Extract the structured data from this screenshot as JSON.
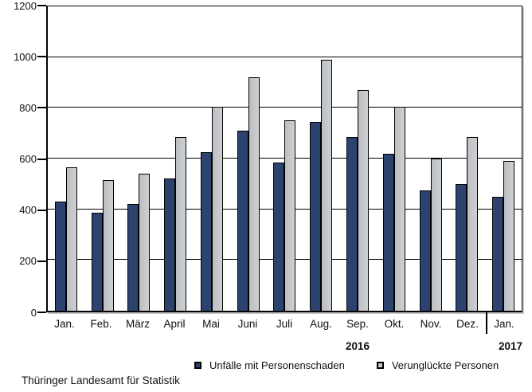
{
  "chart_data": {
    "type": "bar",
    "title": "",
    "xlabel": "",
    "ylabel": "",
    "categories": [
      "Jan.",
      "Feb.",
      "März",
      "April",
      "Mai",
      "Juni",
      "Juli",
      "Aug.",
      "Sep.",
      "Okt.",
      "Nov.",
      "Dez.",
      "Jan."
    ],
    "series": [
      {
        "name": "Unfälle mit Personenschaden",
        "color": "#2c4370",
        "values": [
          430,
          385,
          420,
          520,
          625,
          710,
          585,
          745,
          685,
          620,
          475,
          500,
          450
        ]
      },
      {
        "name": "Verunglückte Personen",
        "color": "#c6c8ca",
        "values": [
          565,
          515,
          540,
          685,
          805,
          920,
          750,
          990,
          870,
          805,
          600,
          685,
          590
        ]
      }
    ],
    "ylim": [
      0,
      1200
    ],
    "yticks": [
      0,
      200,
      400,
      600,
      800,
      1000,
      1200
    ],
    "grid": "horizontal",
    "legend_position": "bottom",
    "year_labels": [
      {
        "text": "2016",
        "span": [
          0,
          11
        ]
      },
      {
        "text": "2017",
        "span": [
          12,
          12
        ]
      }
    ]
  },
  "footer": {
    "source": "Thüringer Landesamt für Statistik"
  }
}
